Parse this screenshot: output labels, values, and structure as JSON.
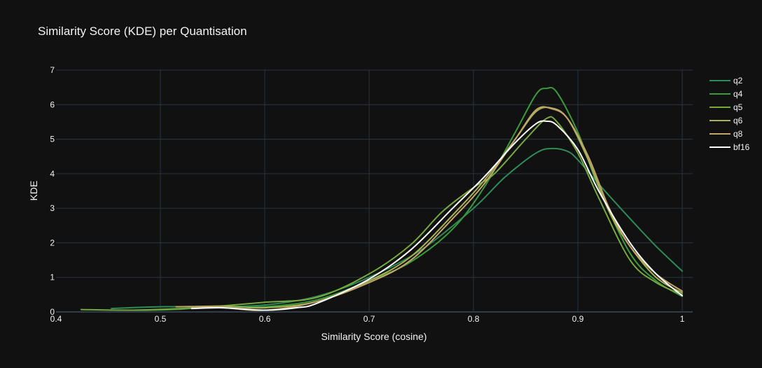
{
  "chart_data": {
    "type": "line",
    "title": "Similarity Score (KDE) per Quantisation",
    "xlabel": "Similarity Score (cosine)",
    "ylabel": "KDE",
    "xlim": [
      0.4,
      1.01
    ],
    "ylim": [
      0,
      7
    ],
    "x_ticks": [
      0.4,
      0.5,
      0.6,
      0.7,
      0.8,
      0.9,
      1
    ],
    "x_tick_labels": [
      "0.4",
      "0.5",
      "0.6",
      "0.7",
      "0.8",
      "0.9",
      "1"
    ],
    "y_ticks": [
      0,
      1,
      2,
      3,
      4,
      5,
      6,
      7
    ],
    "y_tick_labels": [
      "0",
      "1",
      "2",
      "3",
      "4",
      "5",
      "6",
      "7"
    ],
    "grid": true,
    "legend_position": "top-right",
    "background": "#111111",
    "series": [
      {
        "name": "q2",
        "color": "#2e8b57",
        "x": [
          0.453,
          0.5,
          0.55,
          0.6,
          0.65,
          0.7,
          0.75,
          0.8,
          0.83,
          0.86,
          0.875,
          0.89,
          0.9,
          0.92,
          0.95,
          0.975,
          1.0
        ],
        "y": [
          0.1,
          0.15,
          0.15,
          0.2,
          0.45,
          1.0,
          1.8,
          3.0,
          3.9,
          4.6,
          4.73,
          4.65,
          4.4,
          3.7,
          2.7,
          1.9,
          1.18
        ]
      },
      {
        "name": "q4",
        "color": "#3c9a3c",
        "x": [
          0.46,
          0.49,
          0.52,
          0.55,
          0.6,
          0.65,
          0.7,
          0.74,
          0.78,
          0.81,
          0.84,
          0.86,
          0.87,
          0.88,
          0.9,
          0.92,
          0.95,
          0.975,
          1.0
        ],
        "y": [
          0.05,
          0.05,
          0.08,
          0.15,
          0.15,
          0.35,
          0.9,
          1.45,
          2.4,
          3.6,
          5.2,
          6.3,
          6.47,
          6.35,
          5.2,
          3.6,
          1.7,
          0.9,
          0.45
        ]
      },
      {
        "name": "q5",
        "color": "#76a83f",
        "x": [
          0.424,
          0.47,
          0.52,
          0.55,
          0.6,
          0.65,
          0.7,
          0.74,
          0.77,
          0.8,
          0.82,
          0.85,
          0.87,
          0.88,
          0.9,
          0.92,
          0.95,
          0.975,
          1.0
        ],
        "y": [
          0.07,
          0.05,
          0.1,
          0.15,
          0.28,
          0.42,
          1.1,
          1.95,
          2.9,
          3.6,
          4.0,
          5.0,
          5.6,
          5.5,
          4.6,
          3.3,
          1.5,
          0.85,
          0.5
        ]
      },
      {
        "name": "q6",
        "color": "#a7b254",
        "x": [
          0.53,
          0.56,
          0.6,
          0.65,
          0.7,
          0.74,
          0.78,
          0.81,
          0.84,
          0.86,
          0.875,
          0.89,
          0.91,
          0.93,
          0.95,
          0.975,
          1.0
        ],
        "y": [
          0.15,
          0.17,
          0.12,
          0.3,
          0.9,
          1.6,
          2.8,
          3.8,
          5.0,
          5.8,
          5.9,
          5.6,
          4.4,
          2.9,
          1.9,
          1.0,
          0.55
        ]
      },
      {
        "name": "q8",
        "color": "#c2a56b",
        "x": [
          0.515,
          0.55,
          0.6,
          0.65,
          0.7,
          0.74,
          0.78,
          0.81,
          0.84,
          0.86,
          0.875,
          0.89,
          0.91,
          0.93,
          0.95,
          0.975,
          1.0
        ],
        "y": [
          0.15,
          0.15,
          0.05,
          0.3,
          0.85,
          1.5,
          2.7,
          3.7,
          5.0,
          5.85,
          5.88,
          5.6,
          4.5,
          3.0,
          1.9,
          1.1,
          0.6
        ]
      },
      {
        "name": "bf16",
        "color": "#ffffff",
        "x": [
          0.53,
          0.56,
          0.6,
          0.63,
          0.65,
          0.7,
          0.74,
          0.78,
          0.81,
          0.84,
          0.86,
          0.87,
          0.88,
          0.9,
          0.92,
          0.95,
          0.975,
          1.0
        ],
        "y": [
          0.1,
          0.12,
          0.05,
          0.12,
          0.25,
          0.95,
          1.8,
          3.0,
          3.9,
          4.9,
          5.45,
          5.52,
          5.4,
          4.7,
          3.5,
          2.0,
          1.1,
          0.47
        ]
      }
    ]
  }
}
